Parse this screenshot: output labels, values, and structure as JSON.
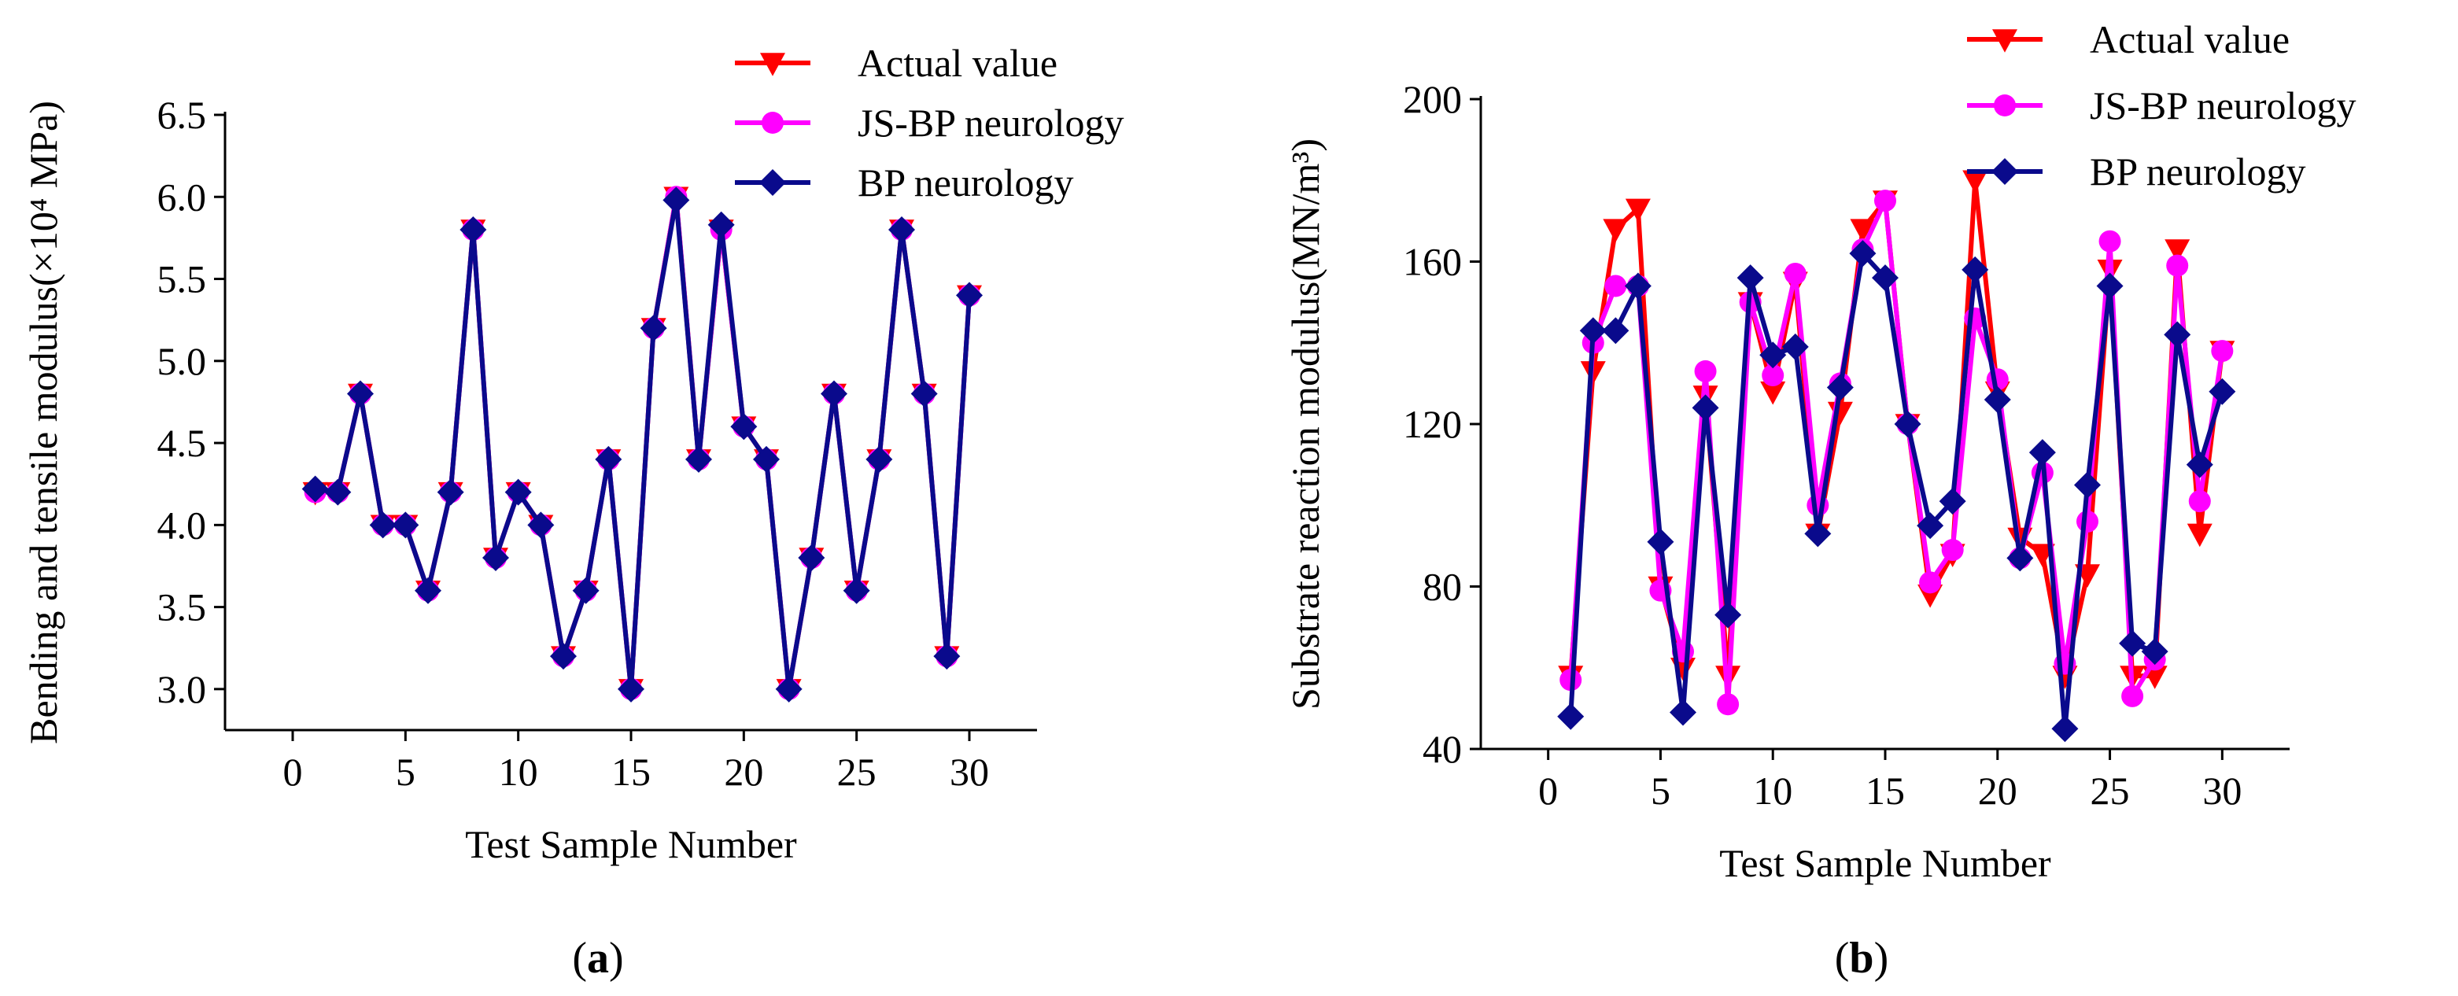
{
  "chart_data": [
    {
      "type": "line",
      "panel_label": "a",
      "ylabel": "Bending and tensile modulus(×10⁴ MPa)",
      "xlabel": "Test Sample Number",
      "xlim": [
        -3,
        33
      ],
      "ylim": [
        2.75,
        6.5
      ],
      "xticks": [
        0,
        5,
        10,
        15,
        20,
        25,
        30
      ],
      "yticks": [
        3.0,
        3.5,
        4.0,
        4.5,
        5.0,
        5.5,
        6.0,
        6.5
      ],
      "ytick_labels": [
        "3.0",
        "3.5",
        "4.0",
        "4.5",
        "5.0",
        "5.5",
        "6.0",
        "6.5"
      ],
      "legend_position": "top-right",
      "x": [
        1,
        2,
        3,
        4,
        5,
        6,
        7,
        8,
        9,
        10,
        11,
        12,
        13,
        14,
        15,
        16,
        17,
        18,
        19,
        20,
        21,
        22,
        23,
        24,
        25,
        26,
        27,
        28,
        29,
        30
      ],
      "series": [
        {
          "name": "Actual value",
          "color": "#ff0000",
          "marker": "triangle-down",
          "values": [
            4.2,
            4.2,
            4.8,
            4.0,
            4.0,
            3.6,
            4.2,
            5.8,
            3.8,
            4.2,
            4.0,
            3.2,
            3.6,
            4.4,
            3.0,
            5.2,
            6.0,
            4.4,
            5.8,
            4.6,
            4.4,
            3.0,
            3.8,
            4.8,
            3.6,
            4.4,
            5.8,
            4.8,
            3.2,
            5.4
          ]
        },
        {
          "name": "JS-BP neurology",
          "color": "#ff00ff",
          "marker": "circle",
          "values": [
            4.2,
            4.2,
            4.8,
            4.0,
            4.0,
            3.6,
            4.2,
            5.8,
            3.8,
            4.2,
            4.0,
            3.2,
            3.6,
            4.4,
            3.0,
            5.2,
            6.0,
            4.4,
            5.8,
            4.6,
            4.4,
            3.0,
            3.8,
            4.8,
            3.6,
            4.4,
            5.8,
            4.8,
            3.2,
            5.4
          ]
        },
        {
          "name": "BP neurology",
          "color": "#0a0a8c",
          "marker": "diamond",
          "values": [
            4.22,
            4.2,
            4.8,
            4.0,
            4.0,
            3.6,
            4.2,
            5.8,
            3.8,
            4.2,
            4.0,
            3.2,
            3.6,
            4.4,
            3.0,
            5.2,
            5.98,
            4.4,
            5.83,
            4.6,
            4.4,
            3.0,
            3.8,
            4.8,
            3.6,
            4.4,
            5.8,
            4.8,
            3.2,
            5.4
          ]
        }
      ]
    },
    {
      "type": "line",
      "panel_label": "b",
      "ylabel": "Substrate reaction modulus(MN/m³)",
      "xlabel": "Test Sample Number",
      "xlim": [
        -3,
        33
      ],
      "ylim": [
        40,
        200
      ],
      "xticks": [
        0,
        5,
        10,
        15,
        20,
        25,
        30
      ],
      "yticks": [
        40,
        80,
        120,
        160,
        200
      ],
      "ytick_labels": [
        "40",
        "80",
        "120",
        "160",
        "200"
      ],
      "legend_position": "top-right",
      "x": [
        1,
        2,
        3,
        4,
        5,
        6,
        7,
        8,
        9,
        10,
        11,
        12,
        13,
        14,
        15,
        16,
        17,
        18,
        19,
        20,
        21,
        22,
        23,
        24,
        25,
        26,
        27,
        28,
        29,
        30
      ],
      "series": [
        {
          "name": "Actual value",
          "color": "#ff0000",
          "marker": "triangle-down",
          "values": [
            58,
            133,
            168,
            173,
            80,
            60,
            127,
            58,
            150,
            128,
            155,
            93,
            123,
            168,
            175,
            120,
            78,
            88,
            180,
            128,
            92,
            88,
            58,
            83,
            158,
            58,
            58,
            163,
            93,
            138
          ]
        },
        {
          "name": "JS-BP neurology",
          "color": "#ff00ff",
          "marker": "circle",
          "values": [
            57,
            140,
            154,
            154,
            79,
            64,
            133,
            51,
            150,
            132,
            157,
            100,
            130,
            163,
            175,
            120,
            81,
            89,
            146,
            131,
            87,
            108,
            61,
            96,
            165,
            53,
            62,
            159,
            101,
            138
          ]
        },
        {
          "name": "BP neurology",
          "color": "#0a0a8c",
          "marker": "diamond",
          "values": [
            48,
            143,
            143,
            154,
            91,
            49,
            124,
            73,
            156,
            137,
            139,
            93,
            129,
            162,
            156,
            120,
            95,
            101,
            158,
            126,
            87,
            113,
            45,
            105,
            154,
            66,
            64,
            142,
            110,
            128
          ]
        }
      ]
    }
  ]
}
